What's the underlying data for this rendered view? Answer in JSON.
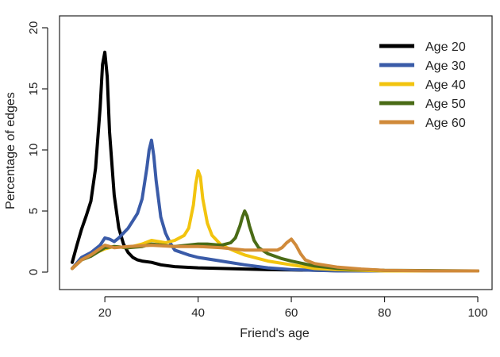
{
  "chart_data": {
    "type": "line",
    "xlabel": "Friend's age",
    "ylabel": "Percentage of edges",
    "xlim": [
      13,
      100
    ],
    "ylim": [
      0,
      20
    ],
    "xticks": [
      20,
      40,
      60,
      80,
      100
    ],
    "yticks": [
      0,
      5,
      10,
      15,
      20
    ],
    "legend_position": "top-right",
    "series": [
      {
        "name": "Age 20",
        "color": "#000000",
        "x": [
          13,
          14,
          15,
          16,
          17,
          18,
          19,
          19.5,
          20,
          20.5,
          21,
          22,
          23,
          24,
          25,
          26,
          27,
          28,
          30,
          32,
          35,
          40,
          45,
          50,
          55,
          60,
          70,
          80,
          90,
          100
        ],
        "y": [
          0.8,
          2.2,
          3.5,
          4.6,
          5.8,
          8.5,
          13.5,
          17.0,
          18.0,
          16.0,
          11.5,
          6.3,
          3.6,
          2.3,
          1.6,
          1.2,
          1.0,
          0.9,
          0.8,
          0.6,
          0.45,
          0.35,
          0.3,
          0.25,
          0.2,
          0.18,
          0.12,
          0.1,
          0.1,
          0.1
        ]
      },
      {
        "name": "Age 30",
        "color": "#3a5ba8",
        "x": [
          13,
          15,
          17,
          19,
          20,
          21,
          22,
          23,
          24,
          25,
          26,
          27,
          28,
          29,
          29.5,
          30,
          30.5,
          31,
          32,
          33,
          34,
          35,
          38,
          40,
          45,
          50,
          55,
          60,
          70,
          80,
          100
        ],
        "y": [
          0.3,
          1.2,
          1.6,
          2.2,
          2.8,
          2.7,
          2.5,
          2.8,
          3.2,
          3.6,
          4.2,
          4.8,
          6.0,
          8.5,
          10.0,
          10.8,
          9.5,
          7.5,
          4.5,
          3.2,
          2.4,
          1.8,
          1.4,
          1.2,
          0.9,
          0.6,
          0.35,
          0.2,
          0.1,
          0.1,
          0.1
        ]
      },
      {
        "name": "Age 40",
        "color": "#f2c40f",
        "x": [
          13,
          15,
          17,
          20,
          22,
          25,
          28,
          30,
          33,
          35,
          37,
          38,
          39,
          39.5,
          40,
          40.5,
          41,
          42,
          43,
          45,
          48,
          50,
          55,
          60,
          65,
          70,
          80,
          100
        ],
        "y": [
          0.3,
          1.0,
          1.4,
          1.9,
          2.1,
          2.0,
          2.3,
          2.6,
          2.4,
          2.6,
          3.0,
          3.6,
          5.5,
          7.2,
          8.3,
          7.8,
          6.0,
          4.0,
          3.0,
          2.2,
          1.7,
          1.4,
          0.9,
          0.6,
          0.3,
          0.2,
          0.1,
          0.1
        ]
      },
      {
        "name": "Age 50",
        "color": "#4a6b16",
        "x": [
          13,
          15,
          17,
          20,
          22,
          25,
          28,
          30,
          35,
          40,
          42,
          45,
          47,
          48,
          49,
          49.5,
          50,
          50.5,
          51,
          52,
          53,
          55,
          58,
          60,
          65,
          70,
          80,
          100
        ],
        "y": [
          0.3,
          1.0,
          1.3,
          2.0,
          2.1,
          2.0,
          2.1,
          2.3,
          2.1,
          2.3,
          2.3,
          2.2,
          2.4,
          2.8,
          3.8,
          4.5,
          5.0,
          4.6,
          3.8,
          2.6,
          2.0,
          1.5,
          1.1,
          0.9,
          0.5,
          0.3,
          0.15,
          0.1
        ]
      },
      {
        "name": "Age 60",
        "color": "#d08a3a",
        "x": [
          13,
          15,
          17,
          20,
          22,
          25,
          30,
          35,
          40,
          45,
          50,
          55,
          57,
          58,
          59,
          60,
          61,
          62,
          63,
          65,
          70,
          75,
          80,
          90,
          100
        ],
        "y": [
          0.3,
          1.0,
          1.4,
          2.2,
          2.0,
          2.1,
          2.2,
          2.1,
          2.1,
          2.0,
          1.8,
          1.8,
          1.8,
          2.0,
          2.4,
          2.7,
          2.2,
          1.5,
          1.0,
          0.7,
          0.4,
          0.25,
          0.15,
          0.1,
          0.1
        ]
      }
    ]
  }
}
